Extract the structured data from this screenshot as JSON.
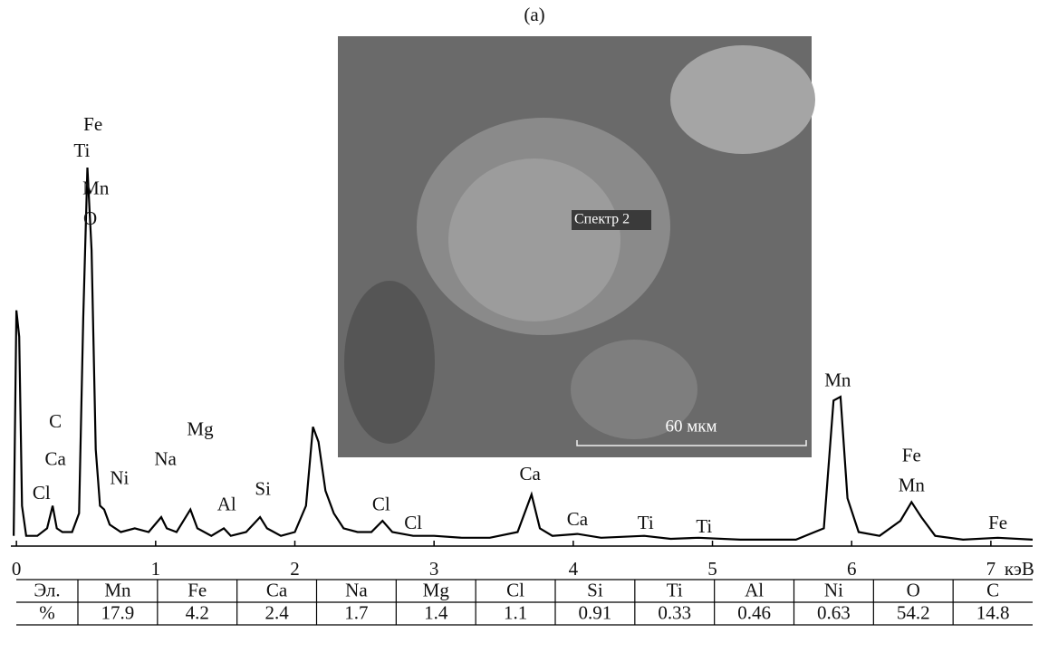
{
  "chart_data": {
    "type": "line",
    "title": "(a)",
    "x_unit": "кэВ",
    "x": [
      -0.02,
      0.0,
      0.02,
      0.04,
      0.07,
      0.15,
      0.22,
      0.26,
      0.29,
      0.33,
      0.4,
      0.45,
      0.48,
      0.51,
      0.54,
      0.57,
      0.6,
      0.63,
      0.67,
      0.75,
      0.85,
      0.95,
      1.04,
      1.08,
      1.15,
      1.25,
      1.3,
      1.4,
      1.49,
      1.54,
      1.65,
      1.75,
      1.8,
      1.9,
      2.0,
      2.08,
      2.13,
      2.17,
      2.22,
      2.28,
      2.35,
      2.45,
      2.55,
      2.63,
      2.7,
      2.85,
      3.0,
      3.2,
      3.4,
      3.6,
      3.7,
      3.76,
      3.85,
      4.03,
      4.2,
      4.51,
      4.7,
      4.9,
      5.2,
      5.6,
      5.8,
      5.87,
      5.92,
      5.97,
      6.05,
      6.2,
      6.35,
      6.43,
      6.5,
      6.6,
      6.8,
      7.05,
      7.3
    ],
    "values": [
      2,
      62,
      55,
      10,
      2,
      2,
      4,
      10,
      4,
      3,
      3,
      8,
      60,
      100,
      78,
      25,
      10,
      9,
      5,
      3,
      4,
      3,
      7,
      4,
      3,
      9,
      4,
      2,
      4,
      2,
      3,
      7,
      4,
      2,
      3,
      10,
      31,
      27,
      14,
      8,
      4,
      3,
      3,
      6,
      3,
      2,
      2,
      1.5,
      1.5,
      3,
      13,
      4,
      2,
      2.5,
      1.5,
      2,
      1.2,
      1.5,
      1,
      1,
      4,
      38,
      39,
      12,
      3,
      2,
      6,
      11,
      7,
      2,
      1,
      1.5,
      1
    ],
    "color": "#000000",
    "xlim": [
      -0.04,
      7.3
    ],
    "ylim": [
      0,
      100
    ],
    "xticks": [
      0,
      1,
      2,
      3,
      4,
      5,
      6,
      7
    ],
    "annotations": [
      {
        "text": "Fe",
        "x": 0.55,
        "y": 111
      },
      {
        "text": "Ti",
        "x": 0.47,
        "y": 104
      },
      {
        "text": "Mn",
        "x": 0.57,
        "y": 94
      },
      {
        "text": "O",
        "x": 0.53,
        "y": 86
      },
      {
        "text": "C",
        "x": 0.28,
        "y": 32
      },
      {
        "text": "Ca",
        "x": 0.28,
        "y": 22
      },
      {
        "text": "Cl",
        "x": 0.18,
        "y": 13
      },
      {
        "text": "Ni",
        "x": 0.74,
        "y": 17
      },
      {
        "text": "Na",
        "x": 1.07,
        "y": 22
      },
      {
        "text": "Mg",
        "x": 1.32,
        "y": 30
      },
      {
        "text": "Al",
        "x": 1.51,
        "y": 10
      },
      {
        "text": "Si",
        "x": 1.77,
        "y": 14
      },
      {
        "text": "Cl",
        "x": 2.62,
        "y": 10
      },
      {
        "text": "Cl",
        "x": 2.85,
        "y": 5
      },
      {
        "text": "Ca",
        "x": 3.69,
        "y": 18
      },
      {
        "text": "Ca",
        "x": 4.03,
        "y": 6
      },
      {
        "text": "Ti",
        "x": 4.52,
        "y": 5
      },
      {
        "text": "Ti",
        "x": 4.94,
        "y": 4
      },
      {
        "text": "Mn",
        "x": 5.9,
        "y": 43
      },
      {
        "text": "Fe",
        "x": 6.43,
        "y": 23
      },
      {
        "text": "Mn",
        "x": 6.43,
        "y": 15
      },
      {
        "text": "Fe",
        "x": 7.05,
        "y": 5
      }
    ]
  },
  "inset": {
    "spot_label": "Спектр 2",
    "scale_label": "60 мкм"
  },
  "table": {
    "row_headers": [
      "Эл.",
      "%"
    ],
    "elements": [
      "Mn",
      "Fe",
      "Ca",
      "Na",
      "Mg",
      "Cl",
      "Si",
      "Ti",
      "Al",
      "Ni",
      "O",
      "C"
    ],
    "percent": [
      17.9,
      4.2,
      2.4,
      1.7,
      1.4,
      1.1,
      0.91,
      0.33,
      0.46,
      0.63,
      54.2,
      14.8
    ]
  }
}
